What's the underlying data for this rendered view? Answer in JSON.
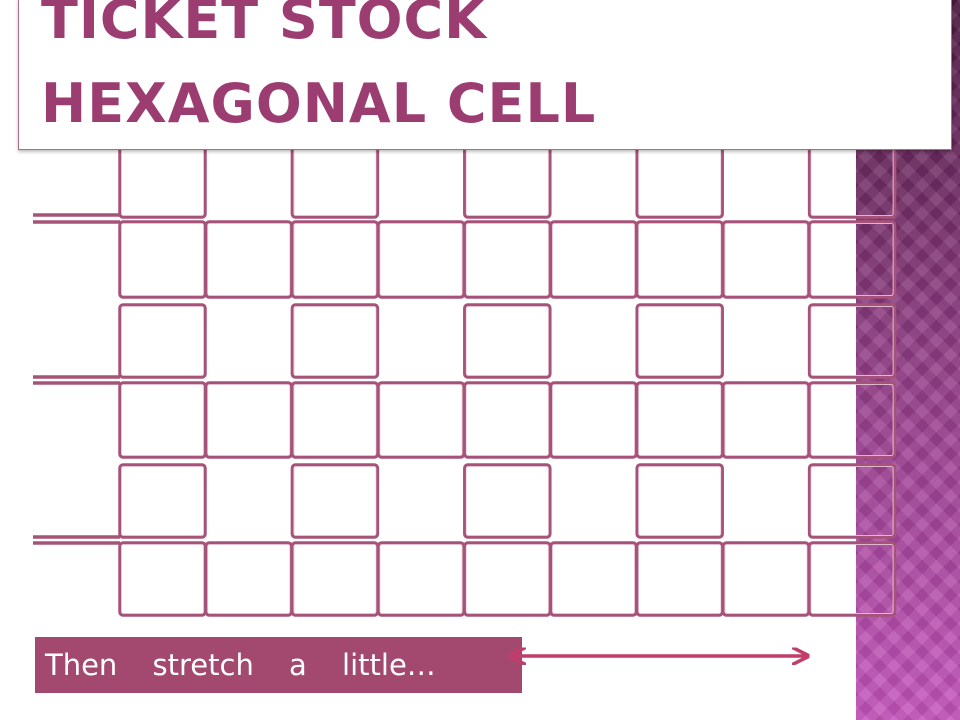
{
  "title": {
    "line1": "TICKET STOCK",
    "line2": "HEXAGONAL CELL"
  },
  "caption": "Then stretch a little…"
}
